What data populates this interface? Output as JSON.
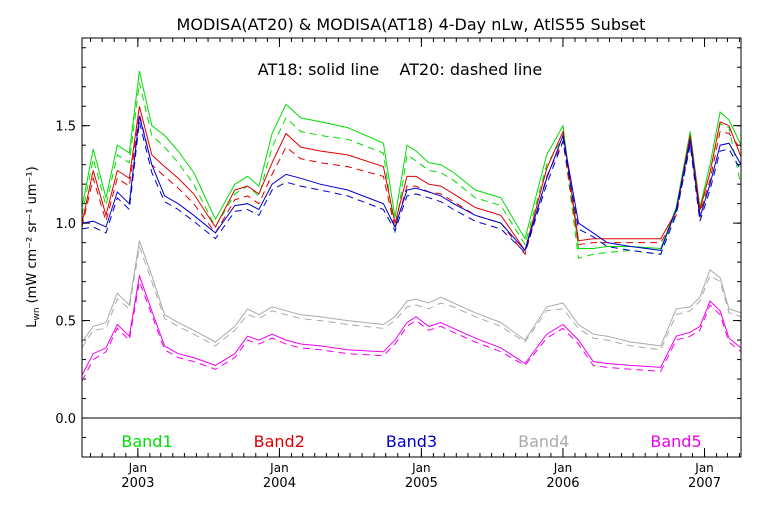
{
  "chart_data": {
    "type": "line",
    "title": "MODISA(AT20) & MODISA(AT18) 4-Day nLw, AtlS55 Subset",
    "annotation": "AT18: solid line    AT20: dashed line",
    "ylabel": "L",
    "ylabel_sub": "wn",
    "ylabel_units": "(mW cm⁻² sr⁻¹ um⁻¹)",
    "xlabel": "",
    "ylim": [
      -0.2,
      1.95
    ],
    "xlim": [
      "2002-08-10",
      "2007-04-05"
    ],
    "grid": false,
    "legend_position": "bottom",
    "x_ticks": [
      {
        "date": "2003-01-01",
        "month": "Jan",
        "year": "2003"
      },
      {
        "date": "2004-01-01",
        "month": "Jan",
        "year": "2004"
      },
      {
        "date": "2005-01-01",
        "month": "Jan",
        "year": "2005"
      },
      {
        "date": "2006-01-01",
        "month": "Jan",
        "year": "2006"
      },
      {
        "date": "2007-01-01",
        "month": "Jan",
        "year": "2007"
      }
    ],
    "y_ticks": [
      "0.0",
      "0.5",
      "1.0",
      "1.5"
    ],
    "y_tick_values": [
      0.0,
      0.5,
      1.0,
      1.5
    ],
    "zero_line": 0.0,
    "dates": [
      "2002-08-10",
      "2002-09-08",
      "2002-10-11",
      "2002-11-09",
      "2002-12-10",
      "2003-01-05",
      "2003-02-06",
      "2003-03-11",
      "2003-04-15",
      "2003-05-25",
      "2003-07-20",
      "2003-09-08",
      "2003-10-11",
      "2003-11-09",
      "2003-12-13",
      "2004-01-18",
      "2004-02-25",
      "2004-04-15",
      "2004-06-25",
      "2004-09-25",
      "2004-10-25",
      "2004-11-25",
      "2004-12-18",
      "2005-01-20",
      "2005-02-20",
      "2005-03-25",
      "2005-05-20",
      "2005-07-25",
      "2005-09-25",
      "2005-11-20",
      "2006-01-01",
      "2006-02-10",
      "2006-03-20",
      "2006-04-25",
      "2006-06-25",
      "2006-09-10",
      "2006-10-20",
      "2006-11-25",
      "2006-12-20",
      "2007-01-15",
      "2007-02-10",
      "2007-03-05",
      "2007-04-05"
    ],
    "series": [
      {
        "name": "Band1",
        "color": "#00dd00",
        "at18": [
          1.08,
          1.38,
          1.13,
          1.4,
          1.36,
          1.78,
          1.5,
          1.45,
          1.37,
          1.26,
          1.02,
          1.2,
          1.24,
          1.19,
          1.46,
          1.61,
          1.54,
          1.52,
          1.49,
          1.41,
          1.03,
          1.4,
          1.37,
          1.31,
          1.3,
          1.26,
          1.17,
          1.13,
          0.92,
          1.35,
          1.5,
          0.87,
          0.87,
          0.88,
          0.88,
          0.87,
          1.08,
          1.47,
          1.08,
          1.3,
          1.57,
          1.53,
          1.4
        ],
        "at20": [
          1.04,
          1.33,
          1.09,
          1.35,
          1.31,
          1.72,
          1.45,
          1.39,
          1.31,
          1.2,
          0.98,
          1.15,
          1.19,
          1.14,
          1.39,
          1.54,
          1.47,
          1.45,
          1.43,
          1.36,
          0.95,
          1.35,
          1.32,
          1.27,
          1.26,
          1.22,
          1.13,
          1.09,
          0.89,
          1.3,
          1.44,
          0.82,
          0.84,
          0.85,
          0.86,
          0.84,
          1.04,
          1.42,
          1.06,
          1.26,
          1.51,
          1.49,
          1.19
        ]
      },
      {
        "name": "Band2",
        "color": "#dd0000",
        "at18": [
          1.0,
          1.27,
          1.04,
          1.27,
          1.23,
          1.6,
          1.35,
          1.29,
          1.23,
          1.15,
          0.98,
          1.17,
          1.19,
          1.15,
          1.31,
          1.46,
          1.39,
          1.37,
          1.35,
          1.29,
          1.0,
          1.24,
          1.24,
          1.2,
          1.19,
          1.15,
          1.08,
          1.04,
          0.86,
          1.28,
          1.47,
          0.91,
          0.92,
          0.92,
          0.92,
          0.92,
          1.06,
          1.45,
          1.07,
          1.26,
          1.52,
          1.5,
          1.34
        ],
        "at20": [
          0.98,
          1.23,
          1.01,
          1.23,
          1.19,
          1.56,
          1.3,
          1.24,
          1.18,
          1.1,
          0.95,
          1.12,
          1.14,
          1.1,
          1.25,
          1.39,
          1.33,
          1.31,
          1.29,
          1.24,
          0.97,
          1.19,
          1.19,
          1.16,
          1.15,
          1.11,
          1.04,
          1.0,
          0.84,
          1.24,
          1.42,
          0.89,
          0.9,
          0.9,
          0.9,
          0.9,
          1.04,
          1.41,
          1.05,
          1.22,
          1.47,
          1.46,
          1.38
        ]
      },
      {
        "name": "Band3",
        "color": "#0000cc",
        "at18": [
          1.0,
          1.01,
          0.98,
          1.16,
          1.1,
          1.55,
          1.3,
          1.14,
          1.1,
          1.04,
          0.95,
          1.09,
          1.1,
          1.07,
          1.2,
          1.25,
          1.23,
          1.2,
          1.17,
          1.1,
          0.98,
          1.17,
          1.18,
          1.16,
          1.14,
          1.1,
          1.04,
          1.0,
          0.86,
          1.23,
          1.45,
          1.0,
          0.95,
          0.9,
          0.88,
          0.86,
          1.07,
          1.43,
          1.03,
          1.2,
          1.4,
          1.41,
          1.3
        ],
        "at20": [
          0.97,
          0.98,
          0.95,
          1.13,
          1.07,
          1.52,
          1.26,
          1.11,
          1.07,
          1.01,
          0.92,
          1.06,
          1.07,
          1.04,
          1.17,
          1.21,
          1.19,
          1.17,
          1.14,
          1.07,
          0.96,
          1.14,
          1.15,
          1.13,
          1.11,
          1.07,
          1.01,
          0.97,
          0.85,
          1.2,
          1.42,
          0.97,
          0.93,
          0.88,
          0.86,
          0.84,
          1.05,
          1.4,
          1.01,
          1.17,
          1.37,
          1.38,
          1.27
        ]
      },
      {
        "name": "Band4",
        "color": "#aaaaaa",
        "at18": [
          0.39,
          0.47,
          0.49,
          0.64,
          0.58,
          0.91,
          0.73,
          0.53,
          0.49,
          0.45,
          0.39,
          0.47,
          0.56,
          0.53,
          0.57,
          0.55,
          0.53,
          0.52,
          0.5,
          0.48,
          0.52,
          0.6,
          0.61,
          0.59,
          0.62,
          0.59,
          0.54,
          0.49,
          0.4,
          0.57,
          0.59,
          0.48,
          0.43,
          0.42,
          0.39,
          0.37,
          0.56,
          0.57,
          0.62,
          0.76,
          0.72,
          0.56,
          0.54
        ],
        "at20": [
          0.36,
          0.45,
          0.46,
          0.61,
          0.56,
          0.88,
          0.7,
          0.51,
          0.47,
          0.43,
          0.37,
          0.45,
          0.53,
          0.51,
          0.55,
          0.53,
          0.51,
          0.5,
          0.48,
          0.46,
          0.5,
          0.57,
          0.58,
          0.56,
          0.59,
          0.57,
          0.52,
          0.47,
          0.39,
          0.55,
          0.56,
          0.46,
          0.41,
          0.4,
          0.37,
          0.35,
          0.53,
          0.55,
          0.6,
          0.73,
          0.7,
          0.54,
          0.52
        ]
      },
      {
        "name": "Band5",
        "color": "#ee00ee",
        "at18": [
          0.22,
          0.33,
          0.36,
          0.48,
          0.42,
          0.73,
          0.55,
          0.37,
          0.33,
          0.31,
          0.27,
          0.33,
          0.42,
          0.4,
          0.43,
          0.4,
          0.38,
          0.37,
          0.35,
          0.34,
          0.4,
          0.49,
          0.52,
          0.47,
          0.49,
          0.46,
          0.41,
          0.36,
          0.28,
          0.43,
          0.48,
          0.4,
          0.29,
          0.28,
          0.27,
          0.26,
          0.42,
          0.44,
          0.47,
          0.6,
          0.55,
          0.41,
          0.36
        ],
        "at20": [
          0.19,
          0.3,
          0.34,
          0.46,
          0.4,
          0.7,
          0.53,
          0.35,
          0.31,
          0.29,
          0.25,
          0.31,
          0.4,
          0.38,
          0.41,
          0.38,
          0.36,
          0.35,
          0.33,
          0.32,
          0.38,
          0.47,
          0.5,
          0.45,
          0.47,
          0.44,
          0.39,
          0.34,
          0.27,
          0.41,
          0.46,
          0.38,
          0.27,
          0.26,
          0.25,
          0.24,
          0.4,
          0.42,
          0.45,
          0.58,
          0.53,
          0.39,
          0.34
        ]
      }
    ]
  }
}
